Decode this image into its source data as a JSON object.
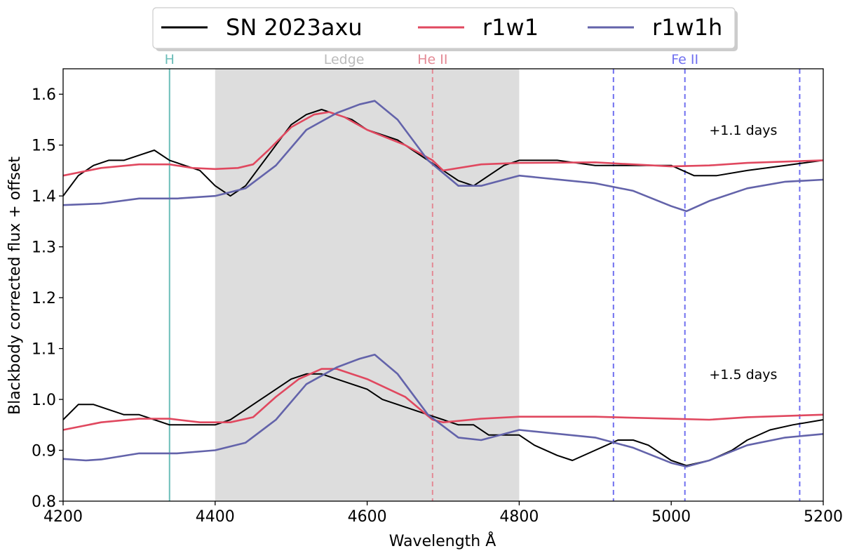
{
  "chart_data": {
    "type": "line",
    "xlabel": "Wavelength Å",
    "ylabel": "Blackbody corrected flux + offset",
    "xlim": [
      4200,
      5200
    ],
    "ylim": [
      0.8,
      1.65
    ],
    "x_ticks": [
      4200,
      4400,
      4600,
      4800,
      5000,
      5200
    ],
    "x_tick_labels": [
      "4200",
      "4400",
      "4600",
      "4800",
      "5000",
      "5200"
    ],
    "y_ticks": [
      0.8,
      0.9,
      1.0,
      1.1,
      1.2,
      1.3,
      1.4,
      1.5,
      1.6
    ],
    "y_tick_labels": [
      "0.8",
      "0.9",
      "1.0",
      "1.1",
      "1.2",
      "1.3",
      "1.4",
      "1.5",
      "1.6"
    ],
    "grid": false,
    "legend_position": "top-center, outside plot",
    "legend": [
      {
        "name": "SN 2023axu",
        "color": "#000000"
      },
      {
        "name": "r1w1",
        "color": "#e0485f"
      },
      {
        "name": "r1w1h",
        "color": "#6363aa"
      }
    ],
    "shaded_region": {
      "label": "Ledge",
      "x": [
        4400,
        4800
      ],
      "color": "#dddddd"
    },
    "line_markers": [
      {
        "label": "H",
        "x": [
          4340
        ],
        "color": "#6bbdb8",
        "style": "solid"
      },
      {
        "label": "He II",
        "x": [
          4686
        ],
        "color": "#e48a95",
        "style": "dashed"
      },
      {
        "label": "Fe II",
        "x": [
          4924,
          5018,
          5169
        ],
        "color": "#7070f0",
        "style": "dashed"
      }
    ],
    "annotations": [
      {
        "text": "+1.1 days",
        "x": 5050,
        "y": 1.53
      },
      {
        "text": "+1.5 days",
        "x": 5050,
        "y": 1.05
      }
    ],
    "series": [
      {
        "name": "SN 2023axu",
        "epoch": "+1.1 days",
        "color": "#000000",
        "x": [
          4200,
          4220,
          4240,
          4260,
          4280,
          4300,
          4320,
          4340,
          4360,
          4380,
          4400,
          4420,
          4440,
          4460,
          4480,
          4500,
          4520,
          4540,
          4560,
          4580,
          4600,
          4620,
          4640,
          4660,
          4680,
          4700,
          4720,
          4740,
          4760,
          4780,
          4800,
          4850,
          4900,
          4950,
          5000,
          5030,
          5060,
          5100,
          5150,
          5200
        ],
        "y": [
          1.4,
          1.44,
          1.46,
          1.47,
          1.47,
          1.48,
          1.49,
          1.47,
          1.46,
          1.45,
          1.42,
          1.4,
          1.42,
          1.46,
          1.5,
          1.54,
          1.56,
          1.57,
          1.56,
          1.55,
          1.53,
          1.52,
          1.51,
          1.49,
          1.47,
          1.45,
          1.43,
          1.42,
          1.44,
          1.46,
          1.47,
          1.47,
          1.46,
          1.46,
          1.46,
          1.44,
          1.44,
          1.45,
          1.46,
          1.47
        ]
      },
      {
        "name": "r1w1",
        "epoch": "+1.1 days",
        "color": "#e0485f",
        "x": [
          4200,
          4250,
          4300,
          4340,
          4370,
          4400,
          4430,
          4450,
          4470,
          4500,
          4530,
          4550,
          4570,
          4600,
          4650,
          4686,
          4700,
          4750,
          4800,
          4900,
          5000,
          5050,
          5100,
          5200
        ],
        "y": [
          1.44,
          1.455,
          1.462,
          1.462,
          1.455,
          1.453,
          1.455,
          1.462,
          1.49,
          1.535,
          1.56,
          1.565,
          1.555,
          1.53,
          1.5,
          1.47,
          1.45,
          1.462,
          1.465,
          1.466,
          1.458,
          1.46,
          1.465,
          1.47
        ]
      },
      {
        "name": "r1w1h",
        "epoch": "+1.1 days",
        "color": "#6363aa",
        "x": [
          4200,
          4250,
          4300,
          4350,
          4400,
          4440,
          4480,
          4520,
          4560,
          4590,
          4610,
          4640,
          4680,
          4720,
          4750,
          4800,
          4900,
          4950,
          5000,
          5020,
          5050,
          5100,
          5150,
          5200
        ],
        "y": [
          1.382,
          1.385,
          1.395,
          1.395,
          1.4,
          1.415,
          1.46,
          1.53,
          1.563,
          1.58,
          1.587,
          1.55,
          1.47,
          1.42,
          1.42,
          1.44,
          1.425,
          1.41,
          1.38,
          1.37,
          1.39,
          1.415,
          1.428,
          1.432
        ]
      },
      {
        "name": "SN 2023axu",
        "epoch": "+1.5 days",
        "color": "#000000",
        "x": [
          4200,
          4220,
          4240,
          4260,
          4280,
          4300,
          4320,
          4340,
          4360,
          4380,
          4400,
          4420,
          4440,
          4460,
          4480,
          4500,
          4520,
          4540,
          4560,
          4580,
          4600,
          4620,
          4640,
          4660,
          4680,
          4700,
          4720,
          4740,
          4760,
          4780,
          4800,
          4820,
          4850,
          4870,
          4900,
          4930,
          4950,
          4970,
          5000,
          5020,
          5050,
          5080,
          5100,
          5130,
          5160,
          5200
        ],
        "y": [
          0.96,
          0.99,
          0.99,
          0.98,
          0.97,
          0.97,
          0.96,
          0.95,
          0.95,
          0.95,
          0.95,
          0.96,
          0.98,
          1.0,
          1.02,
          1.04,
          1.05,
          1.05,
          1.04,
          1.03,
          1.02,
          1.0,
          0.99,
          0.98,
          0.97,
          0.96,
          0.95,
          0.95,
          0.93,
          0.93,
          0.93,
          0.91,
          0.89,
          0.88,
          0.9,
          0.92,
          0.92,
          0.91,
          0.88,
          0.87,
          0.88,
          0.9,
          0.92,
          0.94,
          0.95,
          0.96
        ]
      },
      {
        "name": "r1w1",
        "epoch": "+1.5 days",
        "color": "#e0485f",
        "x": [
          4200,
          4250,
          4300,
          4340,
          4380,
          4420,
          4450,
          4480,
          4510,
          4540,
          4560,
          4600,
          4650,
          4686,
          4700,
          4750,
          4800,
          4900,
          5000,
          5050,
          5100,
          5200
        ],
        "y": [
          0.94,
          0.955,
          0.962,
          0.962,
          0.955,
          0.955,
          0.965,
          1.005,
          1.04,
          1.06,
          1.06,
          1.04,
          1.005,
          0.96,
          0.955,
          0.962,
          0.966,
          0.966,
          0.962,
          0.96,
          0.965,
          0.97
        ]
      },
      {
        "name": "r1w1h",
        "epoch": "+1.5 days",
        "color": "#6363aa",
        "x": [
          4200,
          4230,
          4250,
          4300,
          4350,
          4400,
          4440,
          4480,
          4520,
          4560,
          4590,
          4610,
          4640,
          4680,
          4720,
          4750,
          4800,
          4900,
          4950,
          5000,
          5020,
          5050,
          5100,
          5150,
          5200
        ],
        "y": [
          0.883,
          0.88,
          0.882,
          0.894,
          0.894,
          0.9,
          0.915,
          0.96,
          1.03,
          1.063,
          1.08,
          1.088,
          1.05,
          0.97,
          0.925,
          0.92,
          0.94,
          0.925,
          0.905,
          0.875,
          0.868,
          0.88,
          0.91,
          0.925,
          0.932
        ]
      }
    ]
  }
}
